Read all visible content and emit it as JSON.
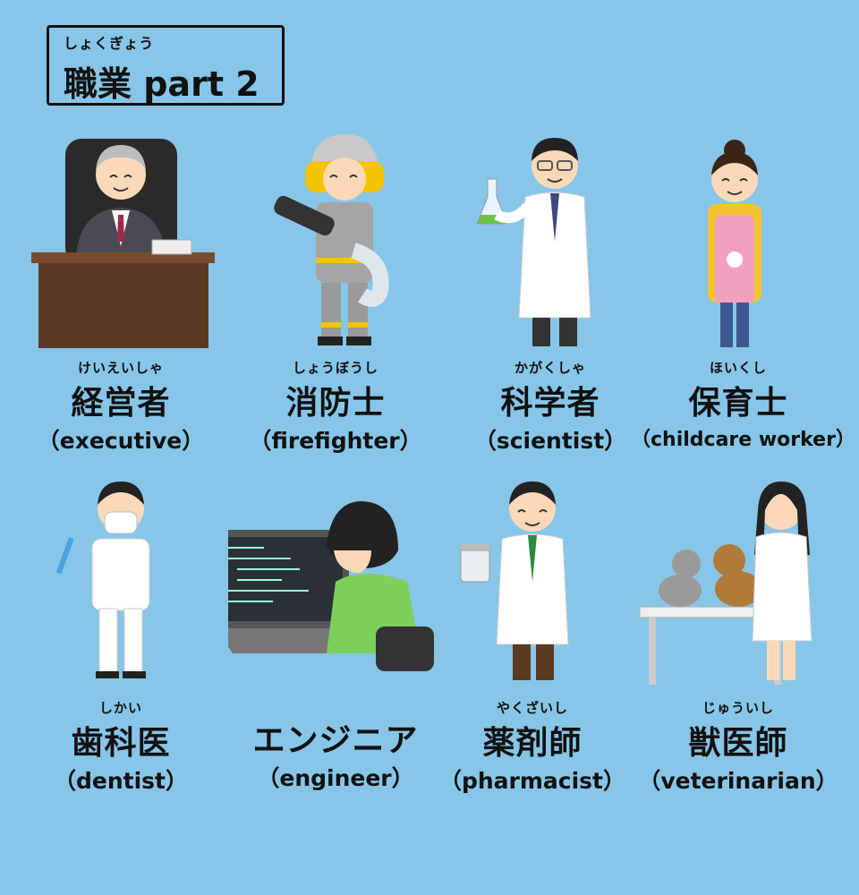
{
  "title": {
    "ruby": "しょくぎょう",
    "main": "職業 part 2"
  },
  "jobs": [
    {
      "ruby": "けいえいしゃ",
      "jp": "経営者",
      "en": "（executive）",
      "icon": "executive-at-desk-icon"
    },
    {
      "ruby": "しょうぼうし",
      "jp": "消防士",
      "en": "（firefighter）",
      "icon": "firefighter-icon"
    },
    {
      "ruby": "かがくしゃ",
      "jp": "科学者",
      "en": "（scientist）",
      "icon": "scientist-with-flask-icon"
    },
    {
      "ruby": "ほいくし",
      "jp": "保育士",
      "en": "（childcare worker）",
      "icon": "childcare-worker-icon"
    },
    {
      "ruby": "しかい",
      "jp": "歯科医",
      "en": "（dentist）",
      "icon": "dentist-icon"
    },
    {
      "ruby": "",
      "jp": "エンジニア",
      "en": "（engineer）",
      "icon": "engineer-at-laptop-icon"
    },
    {
      "ruby": "やくざいし",
      "jp": "薬剤師",
      "en": "（pharmacist）",
      "icon": "pharmacist-icon"
    },
    {
      "ruby": "じゅういし",
      "jp": "獣医師",
      "en": "（veterinarian）",
      "icon": "veterinarian-with-pets-icon"
    }
  ],
  "colors": {
    "background": "#87c6e8",
    "text": "#111111",
    "labcoat": "#ffffff",
    "skin": "#fbd9b8"
  }
}
